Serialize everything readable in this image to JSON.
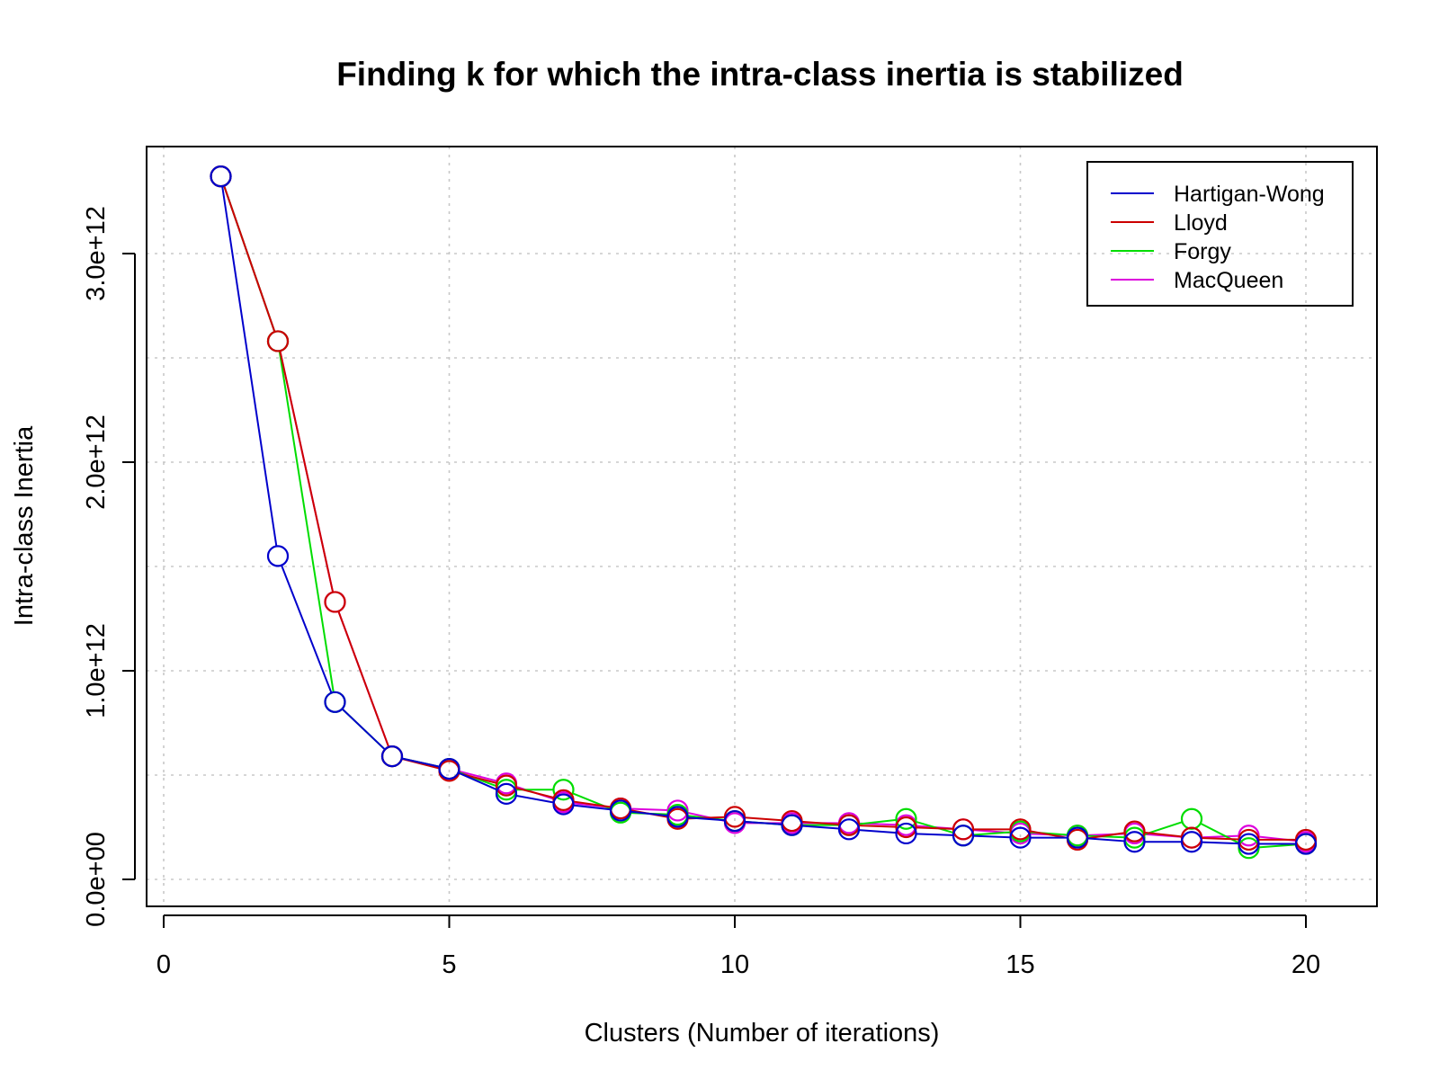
{
  "chart_data": {
    "type": "line",
    "title": "Finding k for which the intra-class inertia is stabilized",
    "xlabel": "Clusters (Number of iterations)",
    "ylabel": "Intra-class Inertia",
    "xlim": [
      0,
      21
    ],
    "ylim": [
      -130000000000.0,
      3500000000000.0
    ],
    "xticks": [
      0,
      5,
      10,
      15,
      20
    ],
    "xtick_labels": [
      "0",
      "5",
      "10",
      "15",
      "20"
    ],
    "yticks": [
      0,
      1000000000000.0,
      2000000000000.0,
      3000000000000.0
    ],
    "ytick_labels": [
      "0.0e+00",
      "1.0e+12",
      "2.0e+12",
      "3.0e+12"
    ],
    "ygrid": [
      0,
      500000000000.0,
      1000000000000.0,
      1500000000000.0,
      2000000000000.0,
      2500000000000.0,
      3000000000000.0
    ],
    "grid": true,
    "legend_position": "top-right",
    "series": [
      {
        "name": "Hartigan-Wong",
        "color": "#0000cc",
        "x": [
          1,
          2,
          3,
          4,
          5,
          6,
          7,
          8,
          9,
          10,
          11,
          12,
          13,
          14,
          15,
          16,
          17,
          18,
          19,
          20
        ],
        "values": [
          3370000000000.0,
          1550000000000.0,
          850000000000.0,
          590000000000.0,
          530000000000.0,
          410000000000.0,
          360000000000.0,
          330000000000.0,
          300000000000.0,
          280000000000.0,
          260000000000.0,
          240000000000.0,
          220000000000.0,
          210000000000.0,
          200000000000.0,
          200000000000.0,
          180000000000.0,
          180000000000.0,
          170000000000.0,
          170000000000.0
        ]
      },
      {
        "name": "Lloyd",
        "color": "#cc0000",
        "x": [
          1,
          2,
          3,
          4,
          5,
          6,
          7,
          8,
          9,
          10,
          11,
          12,
          13,
          14,
          15,
          16,
          17,
          18,
          19,
          20
        ],
        "values": [
          3370000000000.0,
          2580000000000.0,
          1330000000000.0,
          590000000000.0,
          520000000000.0,
          450000000000.0,
          380000000000.0,
          340000000000.0,
          290000000000.0,
          300000000000.0,
          280000000000.0,
          260000000000.0,
          250000000000.0,
          240000000000.0,
          240000000000.0,
          190000000000.0,
          230000000000.0,
          200000000000.0,
          190000000000.0,
          190000000000.0
        ]
      },
      {
        "name": "Forgy",
        "color": "#00dd00",
        "x": [
          1,
          2,
          3,
          4,
          5,
          6,
          7,
          8,
          9,
          10,
          11,
          12,
          13,
          14,
          15,
          16,
          17,
          18,
          19,
          20
        ],
        "values": [
          3370000000000.0,
          2580000000000.0,
          850000000000.0,
          590000000000.0,
          530000000000.0,
          430000000000.0,
          430000000000.0,
          320000000000.0,
          310000000000.0,
          280000000000.0,
          260000000000.0,
          260000000000.0,
          290000000000.0,
          210000000000.0,
          230000000000.0,
          210000000000.0,
          200000000000.0,
          290000000000.0,
          150000000000.0,
          170000000000.0
        ]
      },
      {
        "name": "MacQueen",
        "color": "#dd00dd",
        "x": [
          1,
          2,
          3,
          4,
          5,
          6,
          7,
          8,
          9,
          10,
          11,
          12,
          13,
          14,
          15,
          16,
          17,
          18,
          19,
          20
        ],
        "values": [
          3370000000000.0,
          2580000000000.0,
          1330000000000.0,
          590000000000.0,
          530000000000.0,
          460000000000.0,
          370000000000.0,
          340000000000.0,
          330000000000.0,
          270000000000.0,
          270000000000.0,
          270000000000.0,
          260000000000.0,
          240000000000.0,
          220000000000.0,
          210000000000.0,
          220000000000.0,
          200000000000.0,
          210000000000.0,
          180000000000.0
        ]
      }
    ]
  }
}
